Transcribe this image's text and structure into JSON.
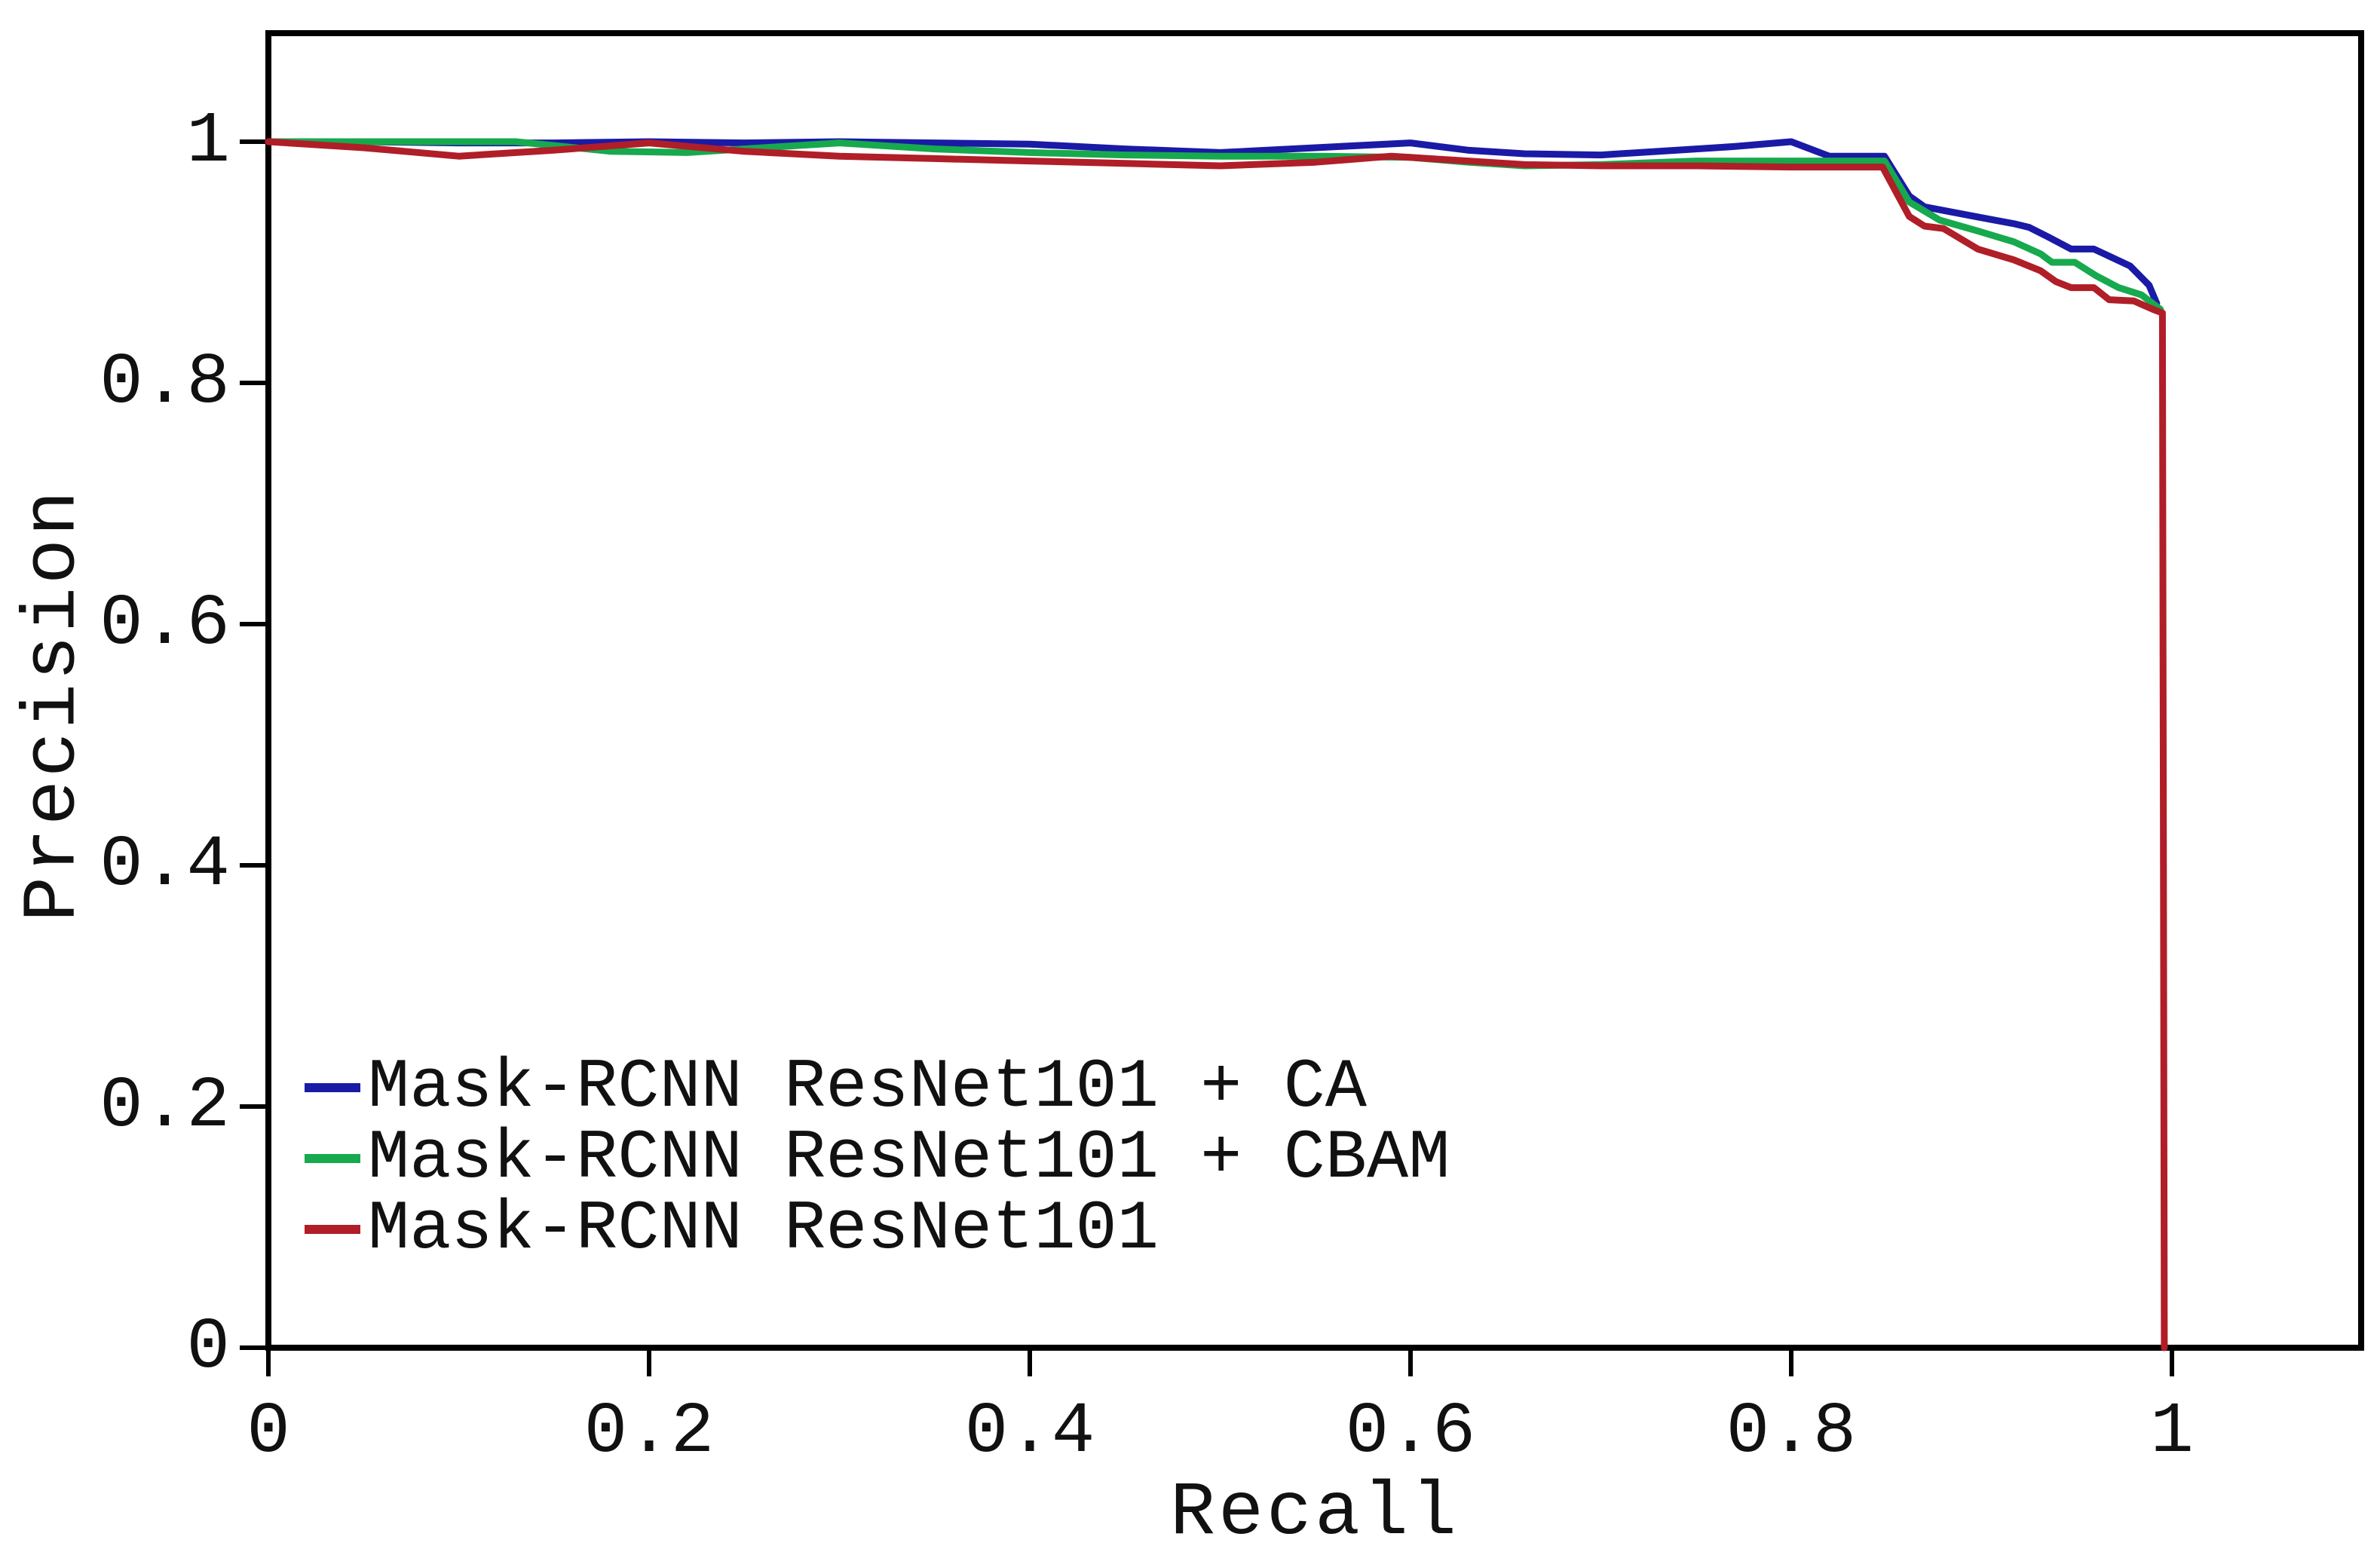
{
  "figure": {
    "background": "#ffffff",
    "axis_color": "#000000",
    "text_color": "#111111"
  },
  "chart_data": {
    "type": "line",
    "title": "",
    "xlabel": "Recall",
    "ylabel": "Precision",
    "xlim": [
      0,
      1.1
    ],
    "ylim": [
      0,
      1.09
    ],
    "grid": false,
    "legend_position": "lower-left-inside",
    "xticks": {
      "values": [
        0,
        0.2,
        0.4,
        0.6,
        0.8,
        1
      ],
      "labels": [
        "0",
        "0.2",
        "0.4",
        "0.6",
        "0.8",
        "1"
      ]
    },
    "yticks": {
      "values": [
        0,
        0.2,
        0.4,
        0.6,
        0.8,
        1
      ],
      "labels": [
        "0",
        "0.2",
        "0.4",
        "0.6",
        "0.8",
        "1"
      ]
    },
    "series": [
      {
        "name": "Mask-RCNN ResNet101 + CA",
        "color": "#1a1aa6",
        "points": [
          [
            0,
            1.0
          ],
          [
            0.05,
            1.0
          ],
          [
            0.1,
            0.999
          ],
          [
            0.15,
            0.999
          ],
          [
            0.2,
            1.0
          ],
          [
            0.25,
            0.999
          ],
          [
            0.3,
            1.0
          ],
          [
            0.35,
            0.999
          ],
          [
            0.4,
            0.998
          ],
          [
            0.45,
            0.994
          ],
          [
            0.5,
            0.991
          ],
          [
            0.55,
            0.995
          ],
          [
            0.6,
            0.999
          ],
          [
            0.63,
            0.993
          ],
          [
            0.66,
            0.99
          ],
          [
            0.7,
            0.989
          ],
          [
            0.74,
            0.993
          ],
          [
            0.77,
            0.996
          ],
          [
            0.8,
            1.0
          ],
          [
            0.82,
            0.988
          ],
          [
            0.849,
            0.988
          ],
          [
            0.862,
            0.955
          ],
          [
            0.87,
            0.946
          ],
          [
            0.9,
            0.937
          ],
          [
            0.917,
            0.932
          ],
          [
            0.925,
            0.929
          ],
          [
            0.935,
            0.921
          ],
          [
            0.947,
            0.911
          ],
          [
            0.959,
            0.911
          ],
          [
            0.978,
            0.897
          ],
          [
            0.988,
            0.881
          ],
          [
            0.992,
            0.866
          ]
        ]
      },
      {
        "name": "Mask-RCNN ResNet101 + CBAM",
        "color": "#17a94d",
        "points": [
          [
            0,
            1.0
          ],
          [
            0.05,
            1.0
          ],
          [
            0.1,
            1.0
          ],
          [
            0.13,
            1.0
          ],
          [
            0.18,
            0.992
          ],
          [
            0.22,
            0.991
          ],
          [
            0.26,
            0.995
          ],
          [
            0.3,
            0.999
          ],
          [
            0.35,
            0.994
          ],
          [
            0.4,
            0.991
          ],
          [
            0.45,
            0.989
          ],
          [
            0.5,
            0.988
          ],
          [
            0.55,
            0.988
          ],
          [
            0.6,
            0.987
          ],
          [
            0.63,
            0.983
          ],
          [
            0.66,
            0.98
          ],
          [
            0.7,
            0.981
          ],
          [
            0.75,
            0.984
          ],
          [
            0.8,
            0.984
          ],
          [
            0.849,
            0.984
          ],
          [
            0.862,
            0.95
          ],
          [
            0.878,
            0.935
          ],
          [
            0.898,
            0.926
          ],
          [
            0.917,
            0.917
          ],
          [
            0.931,
            0.907
          ],
          [
            0.937,
            0.9
          ],
          [
            0.949,
            0.9
          ],
          [
            0.96,
            0.889
          ],
          [
            0.972,
            0.879
          ],
          [
            0.984,
            0.873
          ],
          [
            0.994,
            0.861
          ]
        ]
      },
      {
        "name": "Mask-RCNN ResNet101",
        "color": "#b01e28",
        "points": [
          [
            0,
            1.0
          ],
          [
            0.05,
            0.995
          ],
          [
            0.1,
            0.988
          ],
          [
            0.15,
            0.993
          ],
          [
            0.2,
            0.999
          ],
          [
            0.25,
            0.992
          ],
          [
            0.3,
            0.988
          ],
          [
            0.35,
            0.986
          ],
          [
            0.4,
            0.984
          ],
          [
            0.45,
            0.982
          ],
          [
            0.5,
            0.98
          ],
          [
            0.55,
            0.983
          ],
          [
            0.59,
            0.988
          ],
          [
            0.62,
            0.985
          ],
          [
            0.66,
            0.981
          ],
          [
            0.7,
            0.98
          ],
          [
            0.75,
            0.98
          ],
          [
            0.8,
            0.979
          ],
          [
            0.848,
            0.979
          ],
          [
            0.862,
            0.938
          ],
          [
            0.87,
            0.93
          ],
          [
            0.88,
            0.928
          ],
          [
            0.898,
            0.911
          ],
          [
            0.917,
            0.902
          ],
          [
            0.931,
            0.893
          ],
          [
            0.939,
            0.884
          ],
          [
            0.947,
            0.879
          ],
          [
            0.959,
            0.879
          ],
          [
            0.967,
            0.869
          ],
          [
            0.98,
            0.868
          ],
          [
            0.99,
            0.861
          ],
          [
            0.995,
            0.858
          ],
          [
            0.996,
            0.0
          ]
        ]
      }
    ]
  }
}
